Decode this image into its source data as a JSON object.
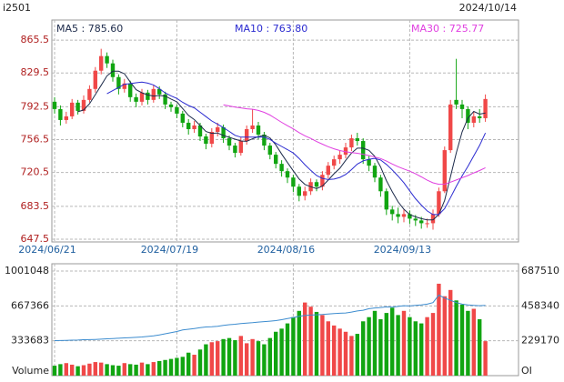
{
  "chart_data": [
    {
      "type": "candlestick",
      "title": "i2501",
      "date": "2024/10/14",
      "categories": [
        "2024/06/21",
        null,
        null,
        null,
        null,
        null,
        null,
        null,
        null,
        null,
        null,
        null,
        null,
        null,
        null,
        null,
        null,
        null,
        null,
        null,
        null,
        "2024/07/19",
        null,
        null,
        null,
        null,
        null,
        null,
        null,
        null,
        null,
        null,
        null,
        null,
        null,
        null,
        null,
        null,
        null,
        null,
        null,
        "2024/08/16",
        null,
        null,
        null,
        null,
        null,
        null,
        null,
        null,
        null,
        null,
        null,
        null,
        null,
        null,
        null,
        null,
        null,
        null,
        null,
        "2024/09/13",
        null,
        null,
        null,
        null,
        null,
        null,
        null,
        null,
        null,
        null,
        null,
        null,
        null
      ],
      "open": [
        798,
        790,
        778,
        782,
        797,
        788,
        800,
        812,
        832,
        848,
        840,
        825,
        812,
        818,
        803,
        798,
        808,
        800,
        812,
        806,
        795,
        792,
        785,
        775,
        768,
        772,
        760,
        752,
        765,
        770,
        758,
        750,
        742,
        755,
        768,
        772,
        762,
        750,
        740,
        730,
        722,
        715,
        705,
        695,
        700,
        710,
        705,
        718,
        728,
        735,
        740,
        748,
        758,
        755,
        735,
        728,
        715,
        700,
        680,
        675,
        672,
        675,
        670,
        668,
        665,
        665,
        675,
        700,
        745,
        800,
        795,
        790,
        775,
        782,
        780
      ],
      "high": [
        803,
        794,
        787,
        801,
        800,
        805,
        816,
        836,
        856,
        852,
        844,
        828,
        823,
        821,
        807,
        812,
        811,
        816,
        815,
        809,
        798,
        795,
        788,
        779,
        777,
        775,
        763,
        769,
        775,
        773,
        761,
        753,
        759,
        772,
        790,
        776,
        765,
        753,
        743,
        734,
        725,
        718,
        708,
        705,
        714,
        713,
        722,
        732,
        739,
        745,
        753,
        762,
        764,
        758,
        739,
        731,
        718,
        703,
        684,
        682,
        680,
        679,
        674,
        672,
        670,
        680,
        704,
        749,
        800,
        845,
        800,
        793,
        787,
        790,
        806
      ],
      "low": [
        785,
        772,
        774,
        779,
        784,
        785,
        797,
        808,
        828,
        835,
        820,
        806,
        808,
        798,
        792,
        794,
        795,
        797,
        801,
        790,
        787,
        780,
        770,
        762,
        764,
        755,
        746,
        748,
        760,
        753,
        745,
        737,
        739,
        751,
        764,
        757,
        745,
        735,
        725,
        716,
        709,
        699,
        689,
        690,
        696,
        700,
        701,
        714,
        724,
        730,
        736,
        744,
        750,
        730,
        722,
        710,
        694,
        674,
        668,
        665,
        666,
        664,
        662,
        659,
        660,
        658,
        672,
        698,
        742,
        790,
        780,
        768,
        770,
        775,
        776
      ],
      "close": [
        790,
        778,
        782,
        797,
        788,
        800,
        812,
        832,
        848,
        840,
        825,
        812,
        818,
        803,
        798,
        808,
        800,
        812,
        806,
        795,
        792,
        785,
        775,
        768,
        772,
        760,
        752,
        765,
        770,
        758,
        750,
        742,
        755,
        768,
        772,
        762,
        750,
        740,
        730,
        722,
        715,
        705,
        695,
        700,
        710,
        705,
        718,
        728,
        735,
        740,
        748,
        758,
        755,
        735,
        728,
        715,
        700,
        680,
        675,
        672,
        675,
        670,
        668,
        665,
        665,
        675,
        700,
        745,
        795,
        795,
        790,
        775,
        782,
        780,
        801
      ],
      "up_color": "#f04848",
      "down_color": "#11a511",
      "series": [
        {
          "name": "MA5 : 785.60",
          "color": "#1c2a4a",
          "values": [
            null,
            null,
            null,
            null,
            787,
            789,
            795.8,
            805.8,
            816,
            826.4,
            831.4,
            831.4,
            828.6,
            819.6,
            811.2,
            807.8,
            805.4,
            804.2,
            804.8,
            804.2,
            801,
            798,
            790.6,
            783,
            778.4,
            772,
            765.4,
            763.4,
            763.8,
            761,
            759,
            757,
            755,
            754.6,
            757.4,
            759.8,
            761.4,
            758.4,
            750.8,
            740.8,
            731.4,
            722.4,
            713.4,
            707.4,
            705,
            703,
            705.6,
            712.2,
            719.2,
            725.2,
            733.8,
            741.8,
            747.2,
            747.2,
            744.8,
            738.2,
            726.6,
            711.6,
            699.6,
            688.4,
            680.4,
            674.4,
            672,
            670,
            668.6,
            668.6,
            674.6,
            690,
            716,
            742,
            765,
            780,
            787.4,
            784.4,
            785.6
          ]
        },
        {
          "name": "MA10 : 763.80",
          "color": "#2a2ad0",
          "values": [
            null,
            null,
            null,
            null,
            null,
            null,
            null,
            null,
            null,
            806.7,
            810.2,
            813.6,
            817.2,
            817.8,
            818.8,
            819.6,
            818.4,
            816.4,
            812.2,
            807.7,
            804.4,
            801.7,
            797.4,
            793.9,
            791.3,
            786.5,
            781.7,
            777,
            773.4,
            769.7,
            765.5,
            761.2,
            759.2,
            759.2,
            759.2,
            759.4,
            759.2,
            756.7,
            752.7,
            749.1,
            745.6,
            741.9,
            735.9,
            729.1,
            722.9,
            717.2,
            714,
            712.8,
            713.3,
            715.1,
            718.4,
            723.7,
            729.7,
            733.2,
            735,
            736,
            734.2,
            729.4,
            723.4,
            716.6,
            709.3,
            700.5,
            691.8,
            684.8,
            678.5,
            674.5,
            674.5,
            681,
            693,
            705.3,
            716.8,
            727.3,
            738.7,
            750.2,
            763.8
          ]
        },
        {
          "name": "MA30 : 725.77",
          "color": "#e03ee0",
          "values": [
            null,
            null,
            null,
            null,
            null,
            null,
            null,
            null,
            null,
            null,
            null,
            null,
            null,
            null,
            null,
            null,
            null,
            null,
            null,
            null,
            null,
            null,
            null,
            null,
            null,
            null,
            null,
            null,
            null,
            794.7,
            793.4,
            792.2,
            791.3,
            790.3,
            789.8,
            788.5,
            786.4,
            783.4,
            779.4,
            775.5,
            771.8,
            768.3,
            764.2,
            760.7,
            757.8,
            754.4,
            751.6,
            748.8,
            746.5,
            744.6,
            743.2,
            742.3,
            741.6,
            740.5,
            739,
            737.5,
            735.8,
            733,
            729.8,
            726.9,
            724.4,
            722,
            719.1,
            715.7,
            712.1,
            709.2,
            707.6,
            707.7,
            709.9,
            712.3,
            714.8,
            717.2,
            720.1,
            722.7,
            725.77
          ]
        }
      ],
      "ylim": [
        644.5,
        887.5
      ],
      "yticks": [
        647.5,
        683.5,
        720.5,
        756.5,
        792.5,
        829.5,
        865.5
      ],
      "grid": true
    },
    {
      "type": "bar",
      "ylabel": "Volume",
      "y2label": "OI",
      "values": [
        95000,
        110000,
        120000,
        105000,
        90000,
        100000,
        115000,
        130000,
        125000,
        110000,
        100000,
        95000,
        120000,
        110000,
        105000,
        125000,
        110000,
        130000,
        140000,
        150000,
        160000,
        170000,
        180000,
        220000,
        200000,
        250000,
        300000,
        320000,
        330000,
        350000,
        360000,
        340000,
        380000,
        310000,
        350000,
        330000,
        300000,
        360000,
        420000,
        450000,
        500000,
        560000,
        620000,
        700000,
        660000,
        610000,
        580000,
        520000,
        480000,
        450000,
        420000,
        380000,
        400000,
        520000,
        560000,
        620000,
        540000,
        600000,
        650000,
        580000,
        620000,
        560000,
        520000,
        500000,
        560000,
        600000,
        880000,
        760000,
        820000,
        720000,
        680000,
        620000,
        640000,
        540000,
        330000
      ],
      "series": [
        {
          "color": "#3c8ccf",
          "axis": "y2",
          "values": [
            230000,
            231000,
            232000,
            233000,
            234000,
            236000,
            237000,
            238000,
            240000,
            242000,
            244000,
            246000,
            248000,
            250000,
            252000,
            254000,
            258000,
            262000,
            268000,
            275000,
            282000,
            290000,
            300000,
            305000,
            310000,
            315000,
            320000,
            322000,
            325000,
            330000,
            335000,
            338000,
            342000,
            345000,
            348000,
            352000,
            355000,
            358000,
            362000,
            368000,
            375000,
            382000,
            390000,
            395000,
            398000,
            400000,
            402000,
            405000,
            408000,
            410000,
            412000,
            418000,
            425000,
            430000,
            440000,
            445000,
            448000,
            452000,
            450000,
            455000,
            460000,
            458000,
            462000,
            465000,
            470000,
            480000,
            530000,
            510000,
            495000,
            480000,
            470000,
            465000,
            462000,
            460000,
            462000
          ]
        }
      ],
      "ylim": [
        0,
        1071000
      ],
      "yticks": [
        333683,
        667366,
        1001048
      ],
      "y2lim": [
        0,
        735550
      ],
      "y2ticks": [
        229170,
        458340,
        687510
      ],
      "grid": true
    }
  ]
}
